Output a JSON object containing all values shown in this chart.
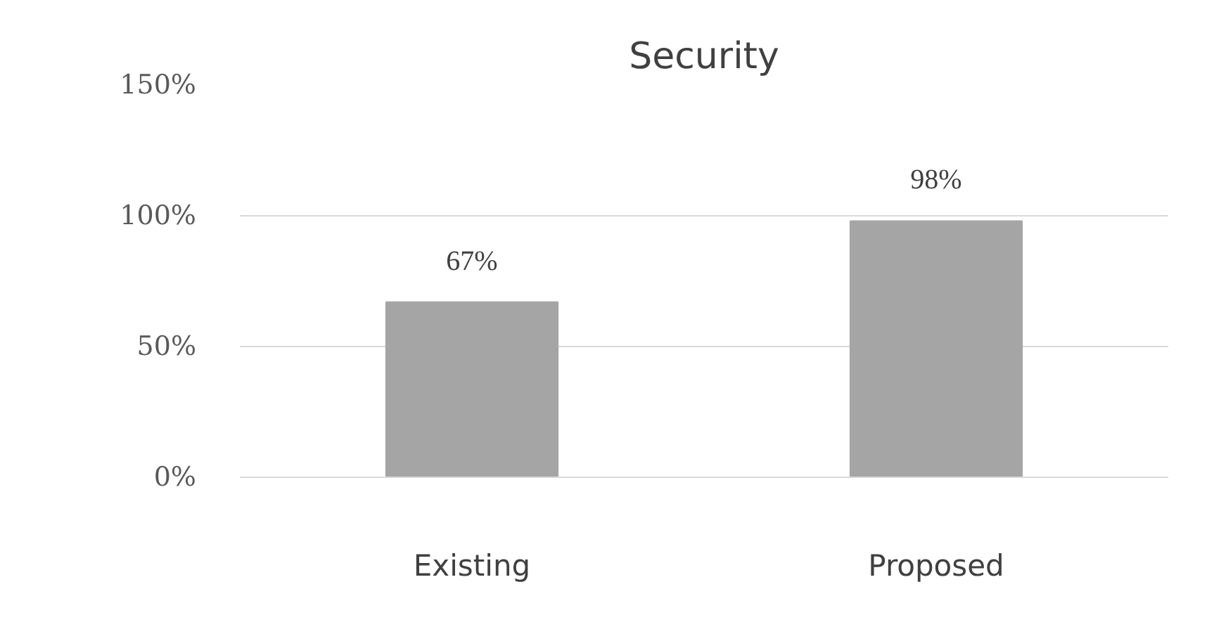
{
  "chart_data": {
    "type": "bar",
    "title": "Security",
    "categories": [
      "Existing",
      "Proposed"
    ],
    "values": [
      67,
      98
    ],
    "value_labels": [
      "67%",
      "98%"
    ],
    "color": "#a5a5a5",
    "ylim": [
      0,
      150
    ],
    "yticks": [
      {
        "value": 0,
        "label": "0%"
      },
      {
        "value": 50,
        "label": "50%"
      },
      {
        "value": 100,
        "label": "100%"
      },
      {
        "value": 150,
        "label": "150%"
      }
    ],
    "grid": "y"
  }
}
